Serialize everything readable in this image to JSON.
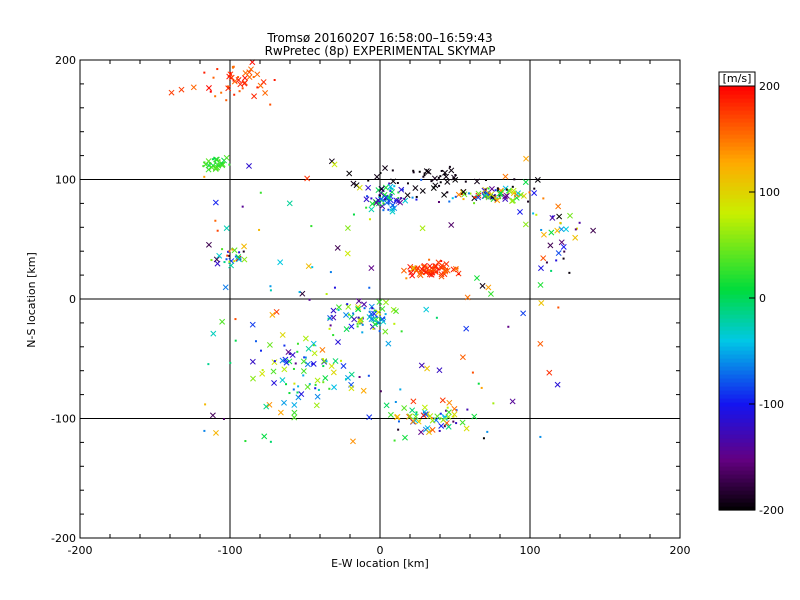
{
  "chart_data": {
    "type": "scatter",
    "title_line1": "Tromsø 20160207 16:58:00–16:59:43",
    "title_line2": "RwPretec (8p) EXPERIMENTAL SKYMAP",
    "xlabel": "E-W location [km]",
    "ylabel": "N-S location [km]",
    "xlim": [
      -200,
      200
    ],
    "ylim": [
      -200,
      200
    ],
    "x_ticks": [
      -200,
      -100,
      0,
      100,
      200
    ],
    "y_ticks": [
      -200,
      -100,
      0,
      100,
      200
    ],
    "x_tick_labels": [
      "-200",
      "-100",
      "0",
      "100",
      "200"
    ],
    "y_tick_labels": [
      "-200",
      "-100",
      "0",
      "100",
      "200"
    ],
    "grid": true,
    "marker_types": [
      "dot",
      "x"
    ],
    "colorbar": {
      "label": "[m/s]",
      "range": [
        -200,
        200
      ],
      "ticks": [
        -200,
        -100,
        0,
        100,
        200
      ],
      "tick_labels": [
        "-200",
        "-100",
        "0",
        "100",
        "200"
      ],
      "colormap": "rainbow: black-purple-blue-cyan-green-yellow-orange-red"
    },
    "point_clusters": [
      {
        "region": "north-west arc",
        "x": -100,
        "y": 180,
        "spread_x": 25,
        "spread_y": 15,
        "count": 45,
        "velocity": [
          150,
          200
        ]
      },
      {
        "region": "north-west patch",
        "x": -110,
        "y": 113,
        "spread_x": 6,
        "spread_y": 4,
        "count": 30,
        "velocity": [
          0,
          40
        ]
      },
      {
        "region": "north central",
        "x": 5,
        "y": 85,
        "spread_x": 12,
        "spread_y": 10,
        "count": 60,
        "velocity": [
          -150,
          30
        ]
      },
      {
        "region": "north-east band",
        "x": 75,
        "y": 87,
        "spread_x": 25,
        "spread_y": 5,
        "count": 70,
        "velocity": [
          -200,
          200
        ]
      },
      {
        "region": "north black band",
        "x": 30,
        "y": 100,
        "spread_x": 50,
        "spread_y": 12,
        "count": 55,
        "velocity": [
          -200,
          -190
        ]
      },
      {
        "region": "central band",
        "x": 35,
        "y": 25,
        "spread_x": 15,
        "spread_y": 5,
        "count": 70,
        "velocity": [
          150,
          200
        ]
      },
      {
        "region": "west mid",
        "x": -100,
        "y": 35,
        "spread_x": 12,
        "spread_y": 8,
        "count": 25,
        "velocity": [
          -200,
          200
        ]
      },
      {
        "region": "central",
        "x": -10,
        "y": -15,
        "spread_x": 20,
        "spread_y": 15,
        "count": 70,
        "velocity": [
          -150,
          100
        ]
      },
      {
        "region": "south-west",
        "x": -50,
        "y": -60,
        "spread_x": 25,
        "spread_y": 25,
        "count": 70,
        "velocity": [
          -150,
          100
        ]
      },
      {
        "region": "south",
        "x": 35,
        "y": -100,
        "spread_x": 25,
        "spread_y": 10,
        "count": 60,
        "velocity": [
          -200,
          200
        ]
      },
      {
        "region": "east",
        "x": 120,
        "y": 50,
        "spread_x": 15,
        "spread_y": 20,
        "count": 30,
        "velocity": [
          -200,
          200
        ]
      },
      {
        "region": "scattered",
        "x": 0,
        "y": 0,
        "spread_x": 120,
        "spread_y": 120,
        "count": 120,
        "velocity": [
          -200,
          200
        ]
      }
    ]
  }
}
